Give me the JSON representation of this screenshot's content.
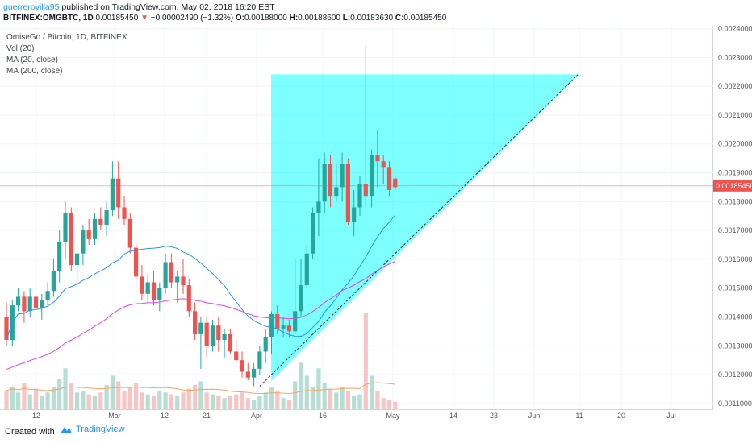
{
  "header": {
    "user": "guerrerovilla95",
    "published": "published on TradingView.com, May 02, 2018 16:20 EST",
    "symbol": "BITFINEX:OMGBTC, 1D",
    "last": "0.00185450",
    "change": "−0.00002490 (−1.32%)",
    "o_label": "O:",
    "o": "0.00188000",
    "h_label": "H:",
    "h": "0.00188600",
    "l_label": "L:",
    "l": "0.00183630",
    "c_label": "C:",
    "c": "0.00185450"
  },
  "legend": {
    "title": "OmiseGo / Bitcoin, 1D, BITFINEX",
    "vol": "Vol (20)",
    "ma20": "MA (20, close)",
    "ma200": "MA (200, close)"
  },
  "footer": {
    "created": "Created with",
    "brand": "TradingView"
  },
  "colors": {
    "up": "#26a69a",
    "down": "#ef5350",
    "ma20": "#2196f3",
    "ma200": "#e040fb",
    "triangle": "#00ffff",
    "price_line": "#ef5350",
    "vol_ma": "#f4a460"
  },
  "chart_data": {
    "type": "candlestick",
    "title": "OmiseGo / Bitcoin, 1D, BITFINEX",
    "ylim": [
      0.00108,
      0.00241
    ],
    "yticks": [
      "0.00240000",
      "0.00230000",
      "0.00220000",
      "0.00210000",
      "0.00200000",
      "0.00190000",
      "0.00180000",
      "0.00170000",
      "0.00160000",
      "0.00150000",
      "0.00140000",
      "0.00130000",
      "0.00120000",
      "0.00110000"
    ],
    "xticks": [
      "12",
      "Mar",
      "12",
      "21",
      "Apr",
      "16",
      "May",
      "14",
      "23",
      "Jun",
      "11",
      "20",
      "Jul"
    ],
    "last_price": "0.00185450",
    "candles": [
      [
        0.0014,
        0.00145,
        0.0013,
        0.00132
      ],
      [
        0.00132,
        0.00146,
        0.0013,
        0.00144
      ],
      [
        0.00144,
        0.0015,
        0.00142,
        0.00147
      ],
      [
        0.00147,
        0.00149,
        0.00138,
        0.00142
      ],
      [
        0.00142,
        0.0015,
        0.0014,
        0.00147
      ],
      [
        0.00147,
        0.00152,
        0.0014,
        0.00143
      ],
      [
        0.00143,
        0.00148,
        0.00139,
        0.00146
      ],
      [
        0.00146,
        0.00152,
        0.00144,
        0.00149
      ],
      [
        0.00149,
        0.0016,
        0.00147,
        0.00156
      ],
      [
        0.00156,
        0.0017,
        0.00152,
        0.00166
      ],
      [
        0.00166,
        0.0018,
        0.0016,
        0.00176
      ],
      [
        0.00176,
        0.00178,
        0.00156,
        0.00158
      ],
      [
        0.00158,
        0.00165,
        0.0015,
        0.00162
      ],
      [
        0.00162,
        0.00172,
        0.00158,
        0.0017
      ],
      [
        0.0017,
        0.00174,
        0.00165,
        0.00167
      ],
      [
        0.00167,
        0.00176,
        0.00165,
        0.00174
      ],
      [
        0.00174,
        0.00178,
        0.0017,
        0.00172
      ],
      [
        0.00172,
        0.0018,
        0.00168,
        0.00177
      ],
      [
        0.00177,
        0.00194,
        0.00175,
        0.00188
      ],
      [
        0.00188,
        0.00194,
        0.00174,
        0.00178
      ],
      [
        0.00178,
        0.00182,
        0.00172,
        0.00174
      ],
      [
        0.00174,
        0.00176,
        0.00162,
        0.00164
      ],
      [
        0.00164,
        0.00166,
        0.0015,
        0.00154
      ],
      [
        0.00154,
        0.00158,
        0.00146,
        0.00148
      ],
      [
        0.00148,
        0.00155,
        0.00145,
        0.00152
      ],
      [
        0.00152,
        0.00156,
        0.00144,
        0.00146
      ],
      [
        0.00146,
        0.00152,
        0.00142,
        0.0015
      ],
      [
        0.0015,
        0.00162,
        0.00148,
        0.00159
      ],
      [
        0.00159,
        0.00162,
        0.0015,
        0.00152
      ],
      [
        0.00152,
        0.00156,
        0.00145,
        0.00154
      ],
      [
        0.00154,
        0.0016,
        0.00148,
        0.00151
      ],
      [
        0.00151,
        0.00153,
        0.0014,
        0.00142
      ],
      [
        0.00142,
        0.00145,
        0.00132,
        0.00134
      ],
      [
        0.00134,
        0.0014,
        0.00122,
        0.00138
      ],
      [
        0.00138,
        0.0014,
        0.00126,
        0.0013
      ],
      [
        0.0013,
        0.00139,
        0.00128,
        0.00137
      ],
      [
        0.00137,
        0.0014,
        0.00128,
        0.00132
      ],
      [
        0.00132,
        0.00136,
        0.00126,
        0.00134
      ],
      [
        0.00134,
        0.00136,
        0.00127,
        0.00128
      ],
      [
        0.00128,
        0.00132,
        0.00124,
        0.00125
      ],
      [
        0.00125,
        0.00128,
        0.00119,
        0.00121
      ],
      [
        0.00121,
        0.00124,
        0.00118,
        0.00119
      ],
      [
        0.00119,
        0.00124,
        0.00116,
        0.00122
      ],
      [
        0.00122,
        0.0013,
        0.0012,
        0.00128
      ],
      [
        0.00128,
        0.00136,
        0.00124,
        0.00133
      ],
      [
        0.00133,
        0.00142,
        0.00127,
        0.00141
      ],
      [
        0.00141,
        0.00144,
        0.00134,
        0.00136
      ],
      [
        0.00136,
        0.0014,
        0.00133,
        0.00137
      ],
      [
        0.00137,
        0.00139,
        0.00133,
        0.00135
      ],
      [
        0.00135,
        0.0016,
        0.00134,
        0.00142
      ],
      [
        0.00142,
        0.0016,
        0.0014,
        0.00151
      ],
      [
        0.00151,
        0.00165,
        0.0015,
        0.00162
      ],
      [
        0.00162,
        0.00178,
        0.0016,
        0.00176
      ],
      [
        0.00176,
        0.00195,
        0.00168,
        0.0018
      ],
      [
        0.0018,
        0.00197,
        0.00176,
        0.00193
      ],
      [
        0.00193,
        0.00196,
        0.00178,
        0.00182
      ],
      [
        0.00182,
        0.00193,
        0.0018,
        0.00185
      ],
      [
        0.00185,
        0.00197,
        0.0018,
        0.00193
      ],
      [
        0.00193,
        0.00195,
        0.00172,
        0.00173
      ],
      [
        0.00173,
        0.00184,
        0.00168,
        0.00178
      ],
      [
        0.00178,
        0.00189,
        0.00175,
        0.00186
      ],
      [
        0.00186,
        0.00234,
        0.00178,
        0.00182
      ],
      [
        0.00182,
        0.00198,
        0.00178,
        0.00196
      ],
      [
        0.00196,
        0.00205,
        0.00185,
        0.00194
      ],
      [
        0.00194,
        0.00196,
        0.00186,
        0.00192
      ],
      [
        0.00192,
        0.00194,
        0.00182,
        0.00184
      ],
      [
        0.00188,
        0.00189,
        0.00184,
        0.00185
      ]
    ],
    "volume": [
      10,
      12,
      9,
      14,
      8,
      11,
      7,
      9,
      12,
      16,
      22,
      14,
      9,
      10,
      8,
      7,
      9,
      13,
      18,
      15,
      10,
      12,
      14,
      9,
      8,
      7,
      10,
      9,
      8,
      7,
      9,
      11,
      13,
      15,
      9,
      8,
      7,
      6,
      7,
      8,
      9,
      6,
      5,
      7,
      9,
      12,
      10,
      6,
      5,
      15,
      25,
      18,
      12,
      22,
      14,
      11,
      9,
      12,
      10,
      7,
      8,
      52,
      18,
      10,
      6,
      5,
      4
    ]
  }
}
